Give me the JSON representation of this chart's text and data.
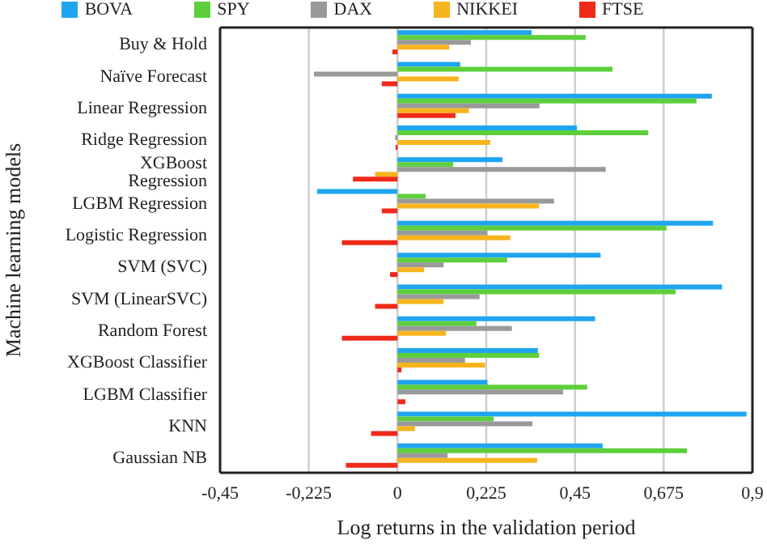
{
  "chart_data": {
    "type": "bar",
    "orientation": "horizontal",
    "xlabel": "Log returns in the validation period",
    "ylabel": "Machine learning models",
    "categories": [
      "Buy & Hold",
      "Naïve Forecast",
      "Linear Regression",
      "Ridge Regression",
      "XGBoost Regression",
      "LGBM Regression",
      "Logistic Regression",
      "SVM (SVC)",
      "SVM (LinearSVC)",
      "Random Forest",
      "XGBoost Classifier",
      "LGBM Classifier",
      "KNN",
      "Gaussian NB"
    ],
    "series": [
      {
        "name": "BOVA",
        "color": "#1fa5f0",
        "values": [
          0.34,
          0.159,
          0.797,
          0.455,
          0.266,
          -0.204,
          0.8,
          0.515,
          0.823,
          0.501,
          0.356,
          0.228,
          0.885,
          0.52
        ]
      },
      {
        "name": "SPY",
        "color": "#5dcf3c",
        "values": [
          0.477,
          0.545,
          0.758,
          0.636,
          0.141,
          0.071,
          0.682,
          0.278,
          0.705,
          0.2,
          0.359,
          0.481,
          0.244,
          0.734
        ]
      },
      {
        "name": "DAX",
        "color": "#999999",
        "values": [
          0.186,
          -0.212,
          0.36,
          -0.006,
          0.528,
          0.397,
          0.228,
          0.117,
          0.208,
          0.29,
          0.171,
          0.42,
          0.342,
          0.127
        ]
      },
      {
        "name": "NIKKEI",
        "color": "#f7b41c",
        "values": [
          0.131,
          0.155,
          0.181,
          0.235,
          -0.057,
          0.359,
          0.286,
          0.067,
          0.117,
          0.123,
          0.222,
          0,
          0.044,
          0.354
        ]
      },
      {
        "name": "FTSE",
        "color": "#f02a1a",
        "values": [
          -0.013,
          -0.04,
          0.147,
          -0.005,
          -0.113,
          -0.04,
          -0.141,
          -0.019,
          -0.057,
          -0.141,
          0.01,
          0.02,
          -0.067,
          -0.131
        ]
      }
    ],
    "xlim": [
      -0.45,
      0.9
    ],
    "xticks": [
      {
        "value": -0.45,
        "label": "-0,45"
      },
      {
        "value": -0.225,
        "label": "-0,225"
      },
      0,
      {
        "value": 0.225,
        "label": "0,225"
      },
      {
        "value": 0.45,
        "label": "0,45"
      },
      {
        "value": 0.675,
        "label": "0,675"
      },
      {
        "value": 0.9,
        "label": "0,9"
      }
    ],
    "grid": "x",
    "legend": "top"
  }
}
